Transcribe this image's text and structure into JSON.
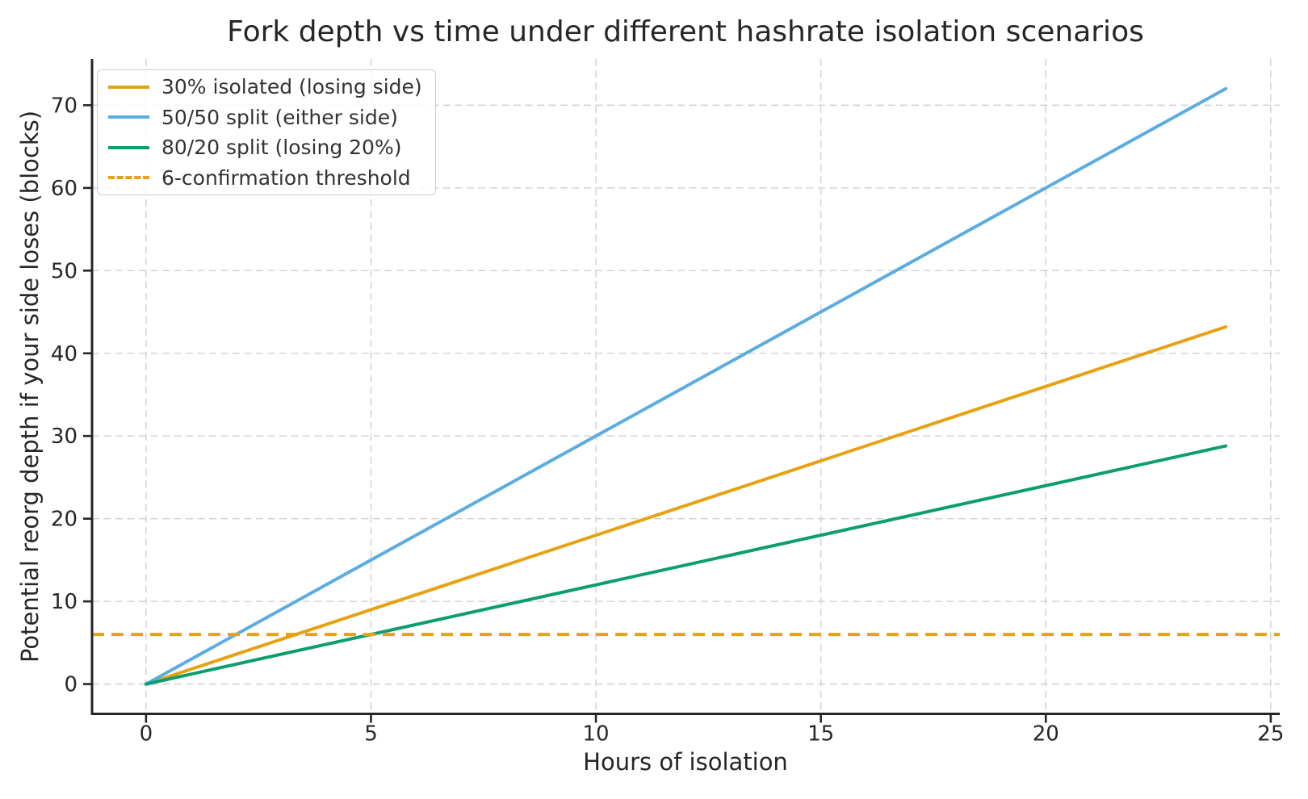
{
  "chart_data": {
    "type": "line",
    "title": "Fork depth vs time under different hashrate isolation scenarios",
    "xlabel": "Hours of isolation",
    "ylabel": "Potential reorg depth if your side loses (blocks)",
    "x": [
      0,
      24
    ],
    "series": [
      {
        "name": "30% isolated (losing side)",
        "color": "#E6A213",
        "line_style": "solid",
        "values": [
          0,
          43.2
        ]
      },
      {
        "name": "50/50 split (either side)",
        "color": "#5CACE2",
        "line_style": "solid",
        "values": [
          0,
          72
        ]
      },
      {
        "name": "80/20 split (losing 20%)",
        "color": "#0C9E6E",
        "line_style": "solid",
        "values": [
          0,
          28.8
        ]
      }
    ],
    "threshold": {
      "name": "6-confirmation threshold",
      "value": 6,
      "color": "#E6A213",
      "line_style": "dashed"
    },
    "xticks": [
      0,
      5,
      10,
      15,
      20,
      25
    ],
    "yticks": [
      0,
      10,
      20,
      30,
      40,
      50,
      60,
      70
    ],
    "xlim": [
      -1.2,
      25.2
    ],
    "ylim": [
      -3.6,
      75.6
    ],
    "grid": true,
    "grid_style": "dashed",
    "legend_position": "upper left"
  },
  "colors": {
    "background": "#ffffff",
    "grid": "#d0d0d0",
    "axis": "#262626",
    "text": "#262626",
    "legend_border": "#cccccc",
    "legend_text": "#333333"
  }
}
